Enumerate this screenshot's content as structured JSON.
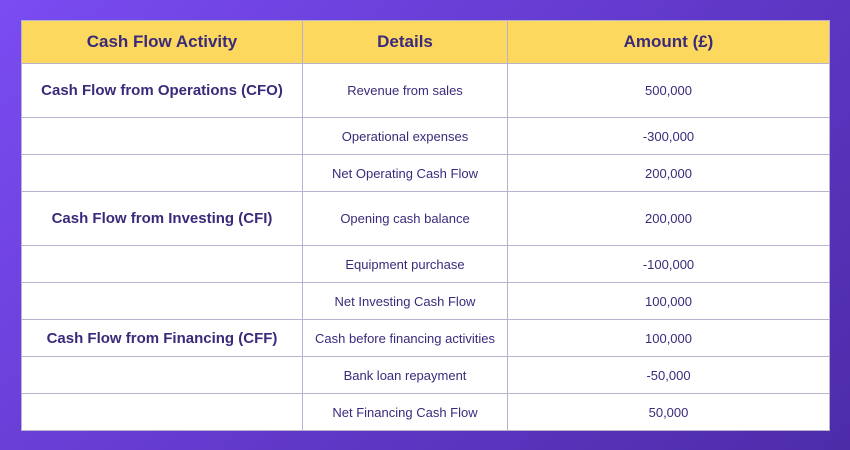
{
  "table": {
    "headers": [
      "Cash Flow Activity",
      "Details",
      "Amount (£)"
    ],
    "rows": [
      {
        "activity": "Cash Flow from Operations (CFO)",
        "details": "Revenue from sales",
        "amount": "500,000"
      },
      {
        "activity": "",
        "details": "Operational expenses",
        "amount": "-300,000"
      },
      {
        "activity": "",
        "details": "Net Operating Cash Flow",
        "amount": "200,000"
      },
      {
        "activity": "Cash Flow from Investing (CFI)",
        "details": "Opening cash balance",
        "amount": "200,000"
      },
      {
        "activity": "",
        "details": "Equipment purchase",
        "amount": "-100,000"
      },
      {
        "activity": "",
        "details": "Net Investing Cash Flow",
        "amount": "100,000"
      },
      {
        "activity": "Cash Flow from Financing (CFF)",
        "details": "Cash before financing activities",
        "amount": "100,000"
      },
      {
        "activity": "",
        "details": "Bank loan repayment",
        "amount": "-50,000"
      },
      {
        "activity": "",
        "details": "Net Financing Cash Flow",
        "amount": "50,000"
      }
    ]
  },
  "colors": {
    "header_bg": "#fcd95e",
    "text": "#3b2a7a",
    "border": "#b8b2cf",
    "background_start": "#7a4cf2",
    "background_end": "#4d2ca8"
  }
}
